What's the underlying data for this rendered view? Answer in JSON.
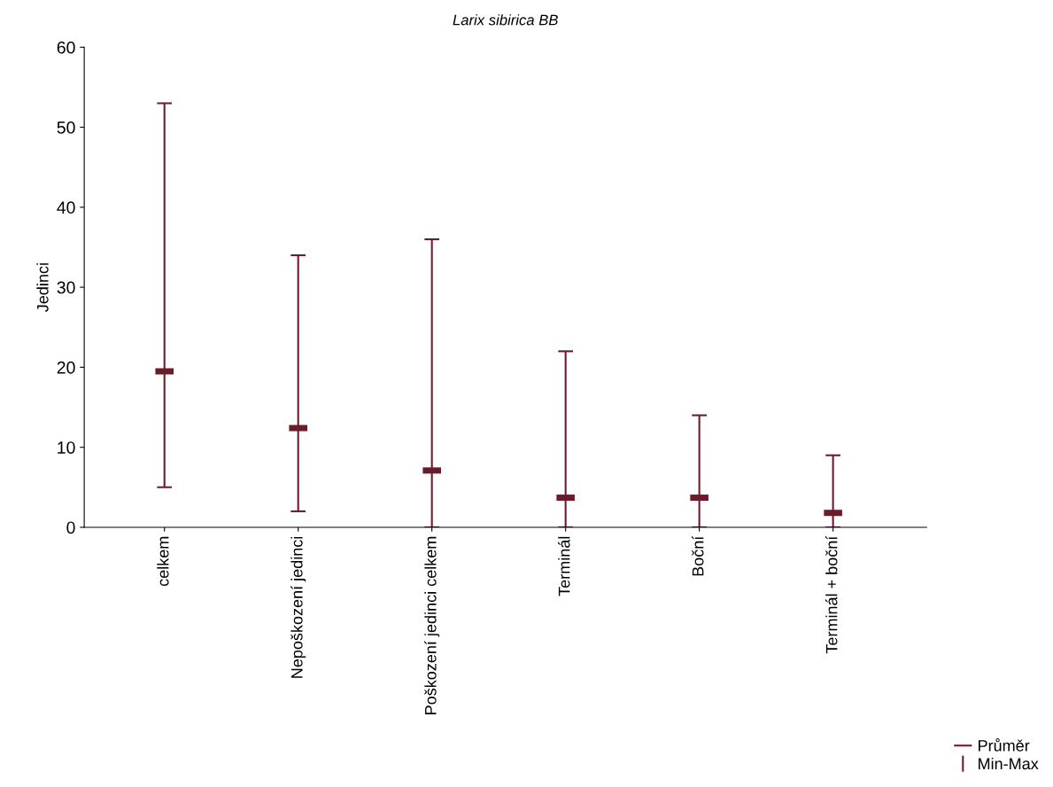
{
  "chart_data": {
    "type": "scatter",
    "title": "Larix sibirica BB",
    "ylabel": "Jedinci",
    "categories": [
      "celkem",
      "Nepoškození jedinci",
      "Poškození jedinci celkem",
      "Terminál",
      "Boční",
      "Terminál + boční"
    ],
    "series": [
      {
        "name": "Průměr",
        "color": "#6b1c2a",
        "values": [
          19.5,
          12.4,
          7.1,
          3.7,
          3.7,
          1.8
        ],
        "errors": [
          [
            5,
            53
          ],
          [
            2,
            34
          ],
          [
            0,
            36
          ],
          [
            0,
            22
          ],
          [
            0,
            14
          ],
          [
            0,
            9
          ]
        ]
      }
    ],
    "annotations": [
      "Min-Max"
    ],
    "ylim": [
      0,
      60
    ],
    "yticks": [
      0,
      10,
      20,
      30,
      40,
      50,
      60
    ],
    "legend": "bottom right"
  }
}
